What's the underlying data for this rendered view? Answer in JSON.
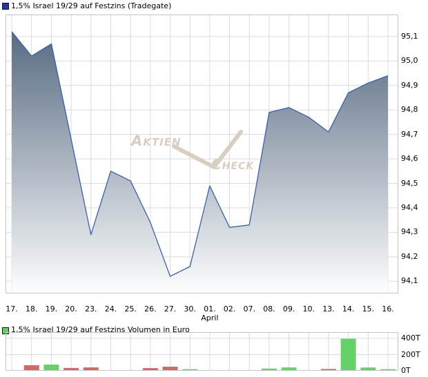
{
  "header": {
    "title": "1,5% Israel 19/29 auf Festzins (Tradegate)",
    "marker_color": "#2438a0"
  },
  "volume_header": {
    "title": "1,5% Israel 19/29 auf Festzins Volumen in Euro",
    "marker_color": "#5fd35f"
  },
  "watermark": {
    "part1": "Aktien",
    "part2": "Check"
  },
  "colors": {
    "grid": "#dcdcdc",
    "plot_border": "#c3c3c3",
    "price_line": "#3a5fa8",
    "area_fill_top": "#4d627a",
    "area_fill_bottom": "#fdfefe",
    "volume_up": "#66d166",
    "volume_down": "#cf6a6a",
    "watermark": "#d8cec1"
  },
  "chart_data": [
    {
      "type": "area",
      "title": "1,5% Israel 19/29 auf Festzins (Tradegate)",
      "x_labels": [
        "17.",
        "18.",
        "19.",
        "20.",
        "23.",
        "24.",
        "25.",
        "26.",
        "27.",
        "30.",
        "01.",
        "02.",
        "07.",
        "08.",
        "09.",
        "10.",
        "13.",
        "14.",
        "15.",
        "16."
      ],
      "month_label": "April",
      "month_label_index": 10,
      "values": [
        95.12,
        95.02,
        95.07,
        94.68,
        94.29,
        94.55,
        94.51,
        94.34,
        94.12,
        94.16,
        94.49,
        94.32,
        94.33,
        94.79,
        94.81,
        94.77,
        94.71,
        94.87,
        94.91,
        94.94
      ],
      "y_ticks": [
        95.1,
        95.0,
        94.9,
        94.8,
        94.7,
        94.6,
        94.5,
        94.4,
        94.3,
        94.2,
        94.1
      ],
      "ylim": [
        94.05,
        95.19
      ],
      "grid": true,
      "legend_position": "top-left",
      "ylabel": "",
      "xlabel": "April"
    },
    {
      "type": "bar",
      "title": "1,5% Israel 19/29 auf Festzins Volumen in Euro",
      "x_labels": [
        "17.",
        "18.",
        "19.",
        "20.",
        "23.",
        "24.",
        "25.",
        "26.",
        "27.",
        "30.",
        "01.",
        "02.",
        "07.",
        "08.",
        "09.",
        "10.",
        "13.",
        "14.",
        "15.",
        "16."
      ],
      "values_thousands": [
        0,
        68,
        77,
        35,
        42,
        0,
        0,
        33,
        50,
        20,
        0,
        0,
        0,
        27,
        41,
        0,
        22,
        395,
        40,
        20
      ],
      "directions": [
        "none",
        "down",
        "up",
        "down",
        "down",
        "none",
        "none",
        "down",
        "down",
        "up",
        "none",
        "none",
        "none",
        "up",
        "up",
        "none",
        "down",
        "up",
        "up",
        "up"
      ],
      "y_ticks": [
        400,
        200,
        0
      ],
      "y_tick_suffix": "T",
      "ylim": [
        0,
        477
      ],
      "grid": true,
      "ylabel": "Volumen in Euro"
    }
  ]
}
